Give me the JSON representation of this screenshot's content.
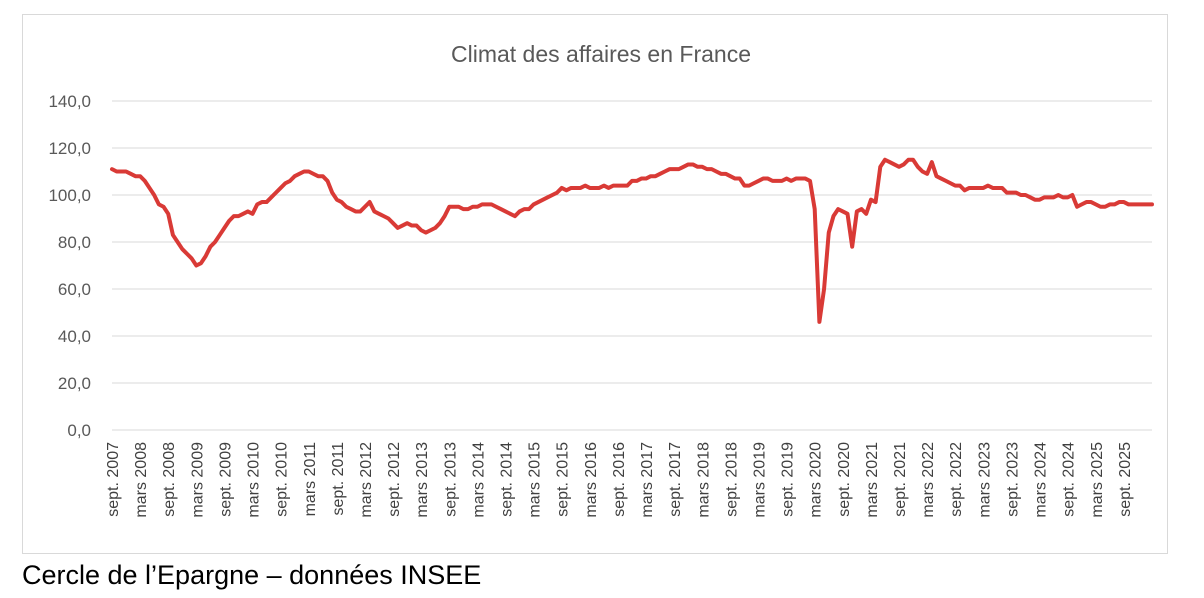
{
  "caption": "Cercle de l’Epargne – données INSEE",
  "chart_data": {
    "type": "line",
    "title": "Climat des affaires en France",
    "xlabel": "",
    "ylabel": "",
    "ylim": [
      0,
      140
    ],
    "yticks": [
      "0,0",
      "20,0",
      "40,0",
      "60,0",
      "80,0",
      "100,0",
      "120,0",
      "140,0"
    ],
    "grid": true,
    "legend": "none",
    "line_color": "#d93a36",
    "x_tick_labels": [
      "sept. 2007",
      "mars 2008",
      "sept. 2008",
      "mars 2009",
      "sept. 2009",
      "mars 2010",
      "sept. 2010",
      "mars 2011",
      "sept. 2011",
      "mars 2012",
      "sept. 2012",
      "mars 2013",
      "sept. 2013",
      "mars 2014",
      "sept. 2014",
      "mars 2015",
      "sept. 2015",
      "mars 2016",
      "sept. 2016",
      "mars 2017",
      "sept. 2017",
      "mars 2018",
      "sept. 2018",
      "mars 2019",
      "sept. 2019",
      "mars 2020",
      "sept. 2020",
      "mars 2021",
      "sept. 2021",
      "mars 2022",
      "sept. 2022",
      "mars 2023",
      "sept. 2023",
      "mars 2024",
      "sept. 2024",
      "mars 2025",
      "sept. 2025"
    ],
    "series": [
      {
        "values": [
          111,
          110,
          110,
          110,
          109,
          108,
          108,
          106,
          103,
          100,
          96,
          95,
          92,
          83,
          80,
          77,
          75,
          73,
          70,
          71,
          74,
          78,
          80,
          83,
          86,
          89,
          91,
          91,
          92,
          93,
          92,
          96,
          97,
          97,
          99,
          101,
          103,
          105,
          106,
          108,
          109,
          110,
          110,
          109,
          108,
          108,
          106,
          101,
          98,
          97,
          95,
          94,
          93,
          93,
          95,
          97,
          93,
          92,
          91,
          90,
          88,
          86,
          87,
          88,
          87,
          87,
          85,
          84,
          85,
          86,
          88,
          91,
          95,
          95,
          95,
          94,
          94,
          95,
          95,
          96,
          96,
          96,
          95,
          94,
          93,
          92,
          91,
          93,
          94,
          94,
          96,
          97,
          98,
          99,
          100,
          101,
          103,
          102,
          103,
          103,
          103,
          104,
          103,
          103,
          103,
          104,
          103,
          104,
          104,
          104,
          104,
          106,
          106,
          107,
          107,
          108,
          108,
          109,
          110,
          111,
          111,
          111,
          112,
          113,
          113,
          112,
          112,
          111,
          111,
          110,
          109,
          109,
          108,
          107,
          107,
          104,
          104,
          105,
          106,
          107,
          107,
          106,
          106,
          106,
          107,
          106,
          107,
          107,
          107,
          106,
          94,
          46,
          60,
          84,
          91,
          94,
          93,
          92,
          78,
          93,
          94,
          92,
          98,
          97,
          112,
          115,
          114,
          113,
          112,
          113,
          115,
          115,
          112,
          110,
          109,
          114,
          108,
          107,
          106,
          105,
          104,
          104,
          102,
          103,
          103,
          103,
          103,
          104,
          103,
          103,
          103,
          101,
          101,
          101,
          100,
          100,
          99,
          98,
          98,
          99,
          99,
          99,
          100,
          99,
          99,
          100,
          95,
          96,
          97,
          97,
          96,
          95,
          95,
          96,
          96,
          97,
          97,
          96,
          96,
          96,
          96,
          96,
          96
        ]
      }
    ]
  }
}
